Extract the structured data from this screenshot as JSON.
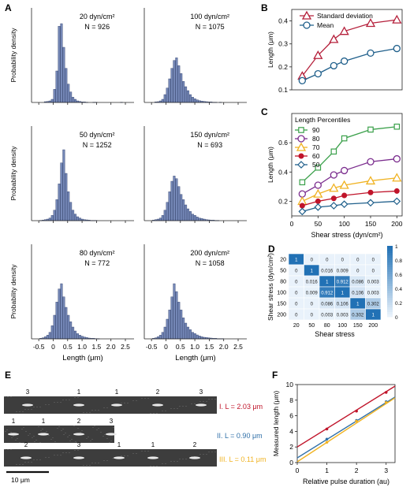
{
  "panel_letters": {
    "A": "A",
    "B": "B",
    "C": "C",
    "D": "D",
    "E": "E",
    "F": "F"
  },
  "chart_data": [
    {
      "panel": "A",
      "type": "bar",
      "ylabel": "Probability density",
      "xlabel": "Length (μm)",
      "xlim": [
        -0.75,
        2.8
      ],
      "xticks": [
        -0.5,
        0,
        0.5,
        1.0,
        1.5,
        2.0,
        2.5
      ],
      "xtick_labels": [
        "-0.5",
        "0",
        "0.5",
        "1.0",
        "1.5",
        "2.0",
        "2.5"
      ],
      "bin_width": 0.08,
      "ylim": [
        0,
        0.36
      ],
      "histograms": [
        {
          "condition": "20 dyn/cm²",
          "n_label": "N = 926",
          "bin_start": -0.55,
          "values": [
            0,
            0,
            0,
            0.003,
            0.004,
            0.006,
            0.012,
            0.05,
            0.12,
            0.29,
            0.3,
            0.21,
            0.13,
            0.07,
            0.04,
            0.02,
            0.012,
            0.006,
            0.004,
            0.002,
            0.002,
            0.001,
            0,
            0,
            0.001,
            0.001,
            0,
            0,
            0,
            0,
            0,
            0,
            0,
            0,
            0,
            0,
            0.001,
            0,
            0,
            0,
            0,
            0
          ]
        },
        {
          "condition": "100 dyn/cm²",
          "n_label": "N = 1075",
          "bin_start": -0.55,
          "values": [
            0,
            0,
            0.002,
            0.003,
            0.006,
            0.012,
            0.03,
            0.055,
            0.09,
            0.13,
            0.16,
            0.17,
            0.14,
            0.11,
            0.08,
            0.06,
            0.045,
            0.03,
            0.02,
            0.014,
            0.01,
            0.007,
            0.005,
            0.004,
            0.003,
            0.002,
            0.002,
            0.001,
            0.001,
            0,
            0.001,
            0,
            0,
            0,
            0,
            0,
            0,
            0,
            0,
            0,
            0,
            0
          ]
        },
        {
          "condition": "50 dyn/cm²",
          "n_label": "N = 1252",
          "bin_start": -0.55,
          "values": [
            0,
            0.001,
            0.002,
            0.004,
            0.006,
            0.01,
            0.02,
            0.04,
            0.08,
            0.14,
            0.22,
            0.27,
            0.18,
            0.11,
            0.07,
            0.04,
            0.025,
            0.015,
            0.01,
            0.006,
            0.004,
            0.003,
            0.002,
            0.001,
            0.001,
            0.001,
            0,
            0,
            0,
            0,
            0,
            0,
            0,
            0,
            0,
            0,
            0,
            0,
            0,
            0,
            0,
            0
          ]
        },
        {
          "condition": "150 dyn/cm²",
          "n_label": "N = 693",
          "bin_start": -0.55,
          "values": [
            0,
            0.002,
            0.004,
            0.006,
            0.01,
            0.02,
            0.04,
            0.07,
            0.11,
            0.15,
            0.17,
            0.16,
            0.13,
            0.1,
            0.08,
            0.06,
            0.045,
            0.035,
            0.025,
            0.02,
            0.014,
            0.01,
            0.008,
            0.006,
            0.004,
            0.003,
            0.002,
            0.002,
            0.001,
            0.001,
            0,
            0,
            0,
            0,
            0,
            0,
            0,
            0,
            0,
            0,
            0,
            0
          ]
        },
        {
          "condition": "80 dyn/cm²",
          "n_label": "N = 772",
          "bin_start": -0.55,
          "values": [
            0,
            0.002,
            0.004,
            0.008,
            0.014,
            0.025,
            0.05,
            0.09,
            0.14,
            0.19,
            0.21,
            0.16,
            0.12,
            0.09,
            0.065,
            0.045,
            0.03,
            0.02,
            0.014,
            0.01,
            0.007,
            0.005,
            0.003,
            0.002,
            0.002,
            0.001,
            0.001,
            0,
            0,
            0,
            0,
            0,
            0,
            0,
            0,
            0,
            0,
            0,
            0,
            0,
            0,
            0
          ]
        },
        {
          "condition": "200 dyn/cm²",
          "n_label": "N = 1058",
          "bin_start": -0.55,
          "values": [
            0,
            0.002,
            0.004,
            0.008,
            0.014,
            0.025,
            0.045,
            0.075,
            0.11,
            0.16,
            0.21,
            0.18,
            0.14,
            0.11,
            0.08,
            0.06,
            0.045,
            0.035,
            0.025,
            0.02,
            0.015,
            0.011,
            0.008,
            0.006,
            0.005,
            0.004,
            0.003,
            0.002,
            0.002,
            0.001,
            0.001,
            0.001,
            0,
            0,
            0,
            0,
            0,
            0,
            0,
            0,
            0,
            0
          ]
        }
      ]
    },
    {
      "panel": "B",
      "type": "line",
      "ylabel": "Length (μm)",
      "x": [
        20,
        50,
        80,
        100,
        150,
        200
      ],
      "xlim": [
        0,
        210
      ],
      "ylim": [
        0.1,
        0.45
      ],
      "yticks": [
        0.1,
        0.2,
        0.3,
        0.4
      ],
      "ytick_labels": [
        "0.1",
        "0.2",
        "0.3",
        "0.4"
      ],
      "series": [
        {
          "name": "Standard deviation",
          "color": "#b5203b",
          "marker": "triangle",
          "values": [
            0.16,
            0.25,
            0.32,
            0.355,
            0.39,
            0.405
          ]
        },
        {
          "name": "Mean",
          "color": "#1f5f8b",
          "marker": "circle",
          "values": [
            0.14,
            0.17,
            0.205,
            0.225,
            0.26,
            0.28
          ]
        }
      ]
    },
    {
      "panel": "C",
      "type": "line",
      "legend_title": "Length Percentiles",
      "ylabel": "Length (μm)",
      "xlabel": "Shear stress (dyn/cm²)",
      "x": [
        20,
        50,
        80,
        100,
        150,
        200
      ],
      "xlim": [
        0,
        210
      ],
      "xticks": [
        0,
        50,
        100,
        150,
        200
      ],
      "xtick_labels": [
        "0",
        "50",
        "100",
        "150",
        "200"
      ],
      "ylim": [
        0.1,
        0.8
      ],
      "yticks": [
        0.2,
        0.4,
        0.6
      ],
      "ytick_labels": [
        "0.2",
        "0.4",
        "0.6"
      ],
      "series": [
        {
          "name": "90",
          "color": "#3aa04a",
          "marker": "square",
          "values": [
            0.33,
            0.43,
            0.54,
            0.63,
            0.69,
            0.71
          ]
        },
        {
          "name": "80",
          "color": "#7b2d8e",
          "marker": "circle",
          "values": [
            0.25,
            0.31,
            0.38,
            0.41,
            0.47,
            0.49
          ]
        },
        {
          "name": "70",
          "color": "#f0b323",
          "marker": "triangle",
          "values": [
            0.2,
            0.25,
            0.29,
            0.31,
            0.34,
            0.36
          ]
        },
        {
          "name": "60",
          "color": "#c0142a",
          "marker": "filled-circle",
          "values": [
            0.17,
            0.2,
            0.22,
            0.24,
            0.26,
            0.27
          ]
        },
        {
          "name": "50",
          "color": "#1f5f8b",
          "marker": "diamond",
          "values": [
            0.13,
            0.16,
            0.17,
            0.18,
            0.19,
            0.2
          ]
        }
      ]
    },
    {
      "panel": "D",
      "type": "heatmap",
      "xlabel": "Shear stress",
      "ylabel": "Shear stress (dyn/cm²)",
      "labels": [
        "20",
        "50",
        "80",
        "100",
        "150",
        "200"
      ],
      "matrix": [
        [
          "1",
          "0",
          "0",
          "0",
          "0",
          "0"
        ],
        [
          "0",
          "1",
          "0.016",
          "0.009",
          "0",
          "0"
        ],
        [
          "0",
          "0.016",
          "1",
          "0.912",
          "0.086",
          "0.003"
        ],
        [
          "0",
          "0.009",
          "0.912",
          "1",
          "0.106",
          "0.003"
        ],
        [
          "0",
          "0",
          "0.086",
          "0.106",
          "1",
          "0.302"
        ],
        [
          "0",
          "0",
          "0.003",
          "0.003",
          "0.302",
          "1"
        ]
      ],
      "colorbar_ticks": [
        "1",
        "0.8",
        "0.6",
        "0.4",
        "0.2",
        "0"
      ],
      "colorbar_range": [
        0,
        1
      ]
    },
    {
      "panel": "F",
      "type": "line",
      "xlabel": "Relative pulse duration (au)",
      "ylabel": "Measured length (μm)",
      "xlim": [
        0,
        3.3
      ],
      "ylim": [
        0,
        10
      ],
      "xticks": [
        0,
        1,
        2,
        3
      ],
      "xtick_labels": [
        "0",
        "1",
        "2",
        "3"
      ],
      "yticks": [
        0,
        2,
        4,
        6,
        8,
        10
      ],
      "ytick_labels": [
        "0",
        "2",
        "4",
        "6",
        "8",
        "10"
      ],
      "series": [
        {
          "name": "I",
          "color": "#c0142a",
          "x": [
            1,
            2,
            3
          ],
          "values": [
            4.3,
            6.6,
            9.0
          ],
          "line": [
            [
              0,
              2.0
            ],
            [
              3.3,
              9.8
            ]
          ]
        },
        {
          "name": "II",
          "color": "#2f6fa8",
          "x": [
            1,
            2,
            3
          ],
          "values": [
            3.0,
            5.4,
            7.8
          ],
          "line": [
            [
              0,
              0.6
            ],
            [
              3.3,
              8.4
            ]
          ]
        },
        {
          "name": "III",
          "color": "#f0b323",
          "x": [
            1,
            2,
            3
          ],
          "values": [
            2.6,
            5.3,
            7.7
          ],
          "line": [
            [
              0,
              0.1
            ],
            [
              3.3,
              8.3
            ]
          ]
        }
      ]
    }
  ],
  "panel_E": {
    "strips": [
      {
        "labels": [
          "3",
          "1",
          "1",
          "2",
          "3"
        ],
        "caption": "I. L = 2.03 μm",
        "color": "#c0142a"
      },
      {
        "labels": [
          "1",
          "1",
          "2",
          "3"
        ],
        "caption": "II. L = 0.90 μm",
        "color": "#2f6fa8"
      },
      {
        "labels": [
          "2",
          "3",
          "1",
          "1",
          "2"
        ],
        "caption": "III. L = 0.11 μm",
        "color": "#f0b323"
      }
    ],
    "scale_bar": "10 μm"
  }
}
